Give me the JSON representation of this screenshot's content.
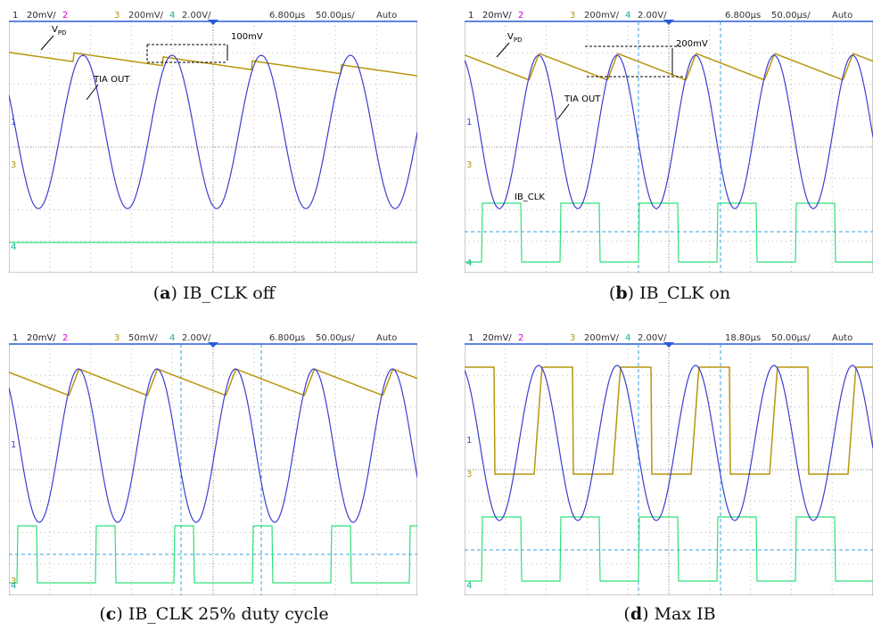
{
  "panels": [
    {
      "label": "a",
      "caption": "IB_CLK off",
      "header": {
        "ch1": "1",
        "ch1_scale": "20mV/",
        "ch2": "2",
        "ch3": "3",
        "ch3_scale": "200mV/",
        "ch4": "4",
        "ch4_scale": "2.00V/",
        "delay": "6.800µs",
        "timebase": "50.00µs/",
        "mode": "Auto"
      },
      "markers": [
        "1",
        "3",
        "4"
      ],
      "annotations": {
        "vpd": {
          "main": "V",
          "sub": "PD"
        },
        "tia": "TIA OUT",
        "delta": "100mV"
      }
    },
    {
      "label": "b",
      "caption": "IB_CLK on",
      "header": {
        "ch1": "1",
        "ch1_scale": "20mV/",
        "ch2": "2",
        "ch3": "3",
        "ch3_scale": "200mV/",
        "ch4": "4",
        "ch4_scale": "2.00V/",
        "delay": "6.800µs",
        "timebase": "50.00µs/",
        "mode": "Auto"
      },
      "markers": [
        "1",
        "3",
        "4"
      ],
      "annotations": {
        "vpd": {
          "main": "V",
          "sub": "PD"
        },
        "tia": "TIA OUT",
        "delta": "200mV",
        "clk": "IB_CLK"
      }
    },
    {
      "label": "c",
      "caption": "IB_CLK 25% duty cycle",
      "header": {
        "ch1": "1",
        "ch1_scale": "20mV/",
        "ch2": "2",
        "ch3": "3",
        "ch3_scale": "50mV/",
        "ch4": "4",
        "ch4_scale": "2.00V/",
        "delay": "6.800µs",
        "timebase": "50.00µs/",
        "mode": "Auto"
      },
      "markers": [
        "1",
        "3",
        "4"
      ],
      "annotations": {}
    },
    {
      "label": "d",
      "caption": "Max IB",
      "header": {
        "ch1": "1",
        "ch1_scale": "20mV/",
        "ch2": "2",
        "ch3": "3",
        "ch3_scale": "200mV/",
        "ch4": "4",
        "ch4_scale": "2.00V/",
        "delay": "18.80µs",
        "timebase": "50.00µs/",
        "mode": "Auto"
      },
      "markers": [
        "1",
        "3",
        "4"
      ],
      "annotations": {}
    }
  ]
}
